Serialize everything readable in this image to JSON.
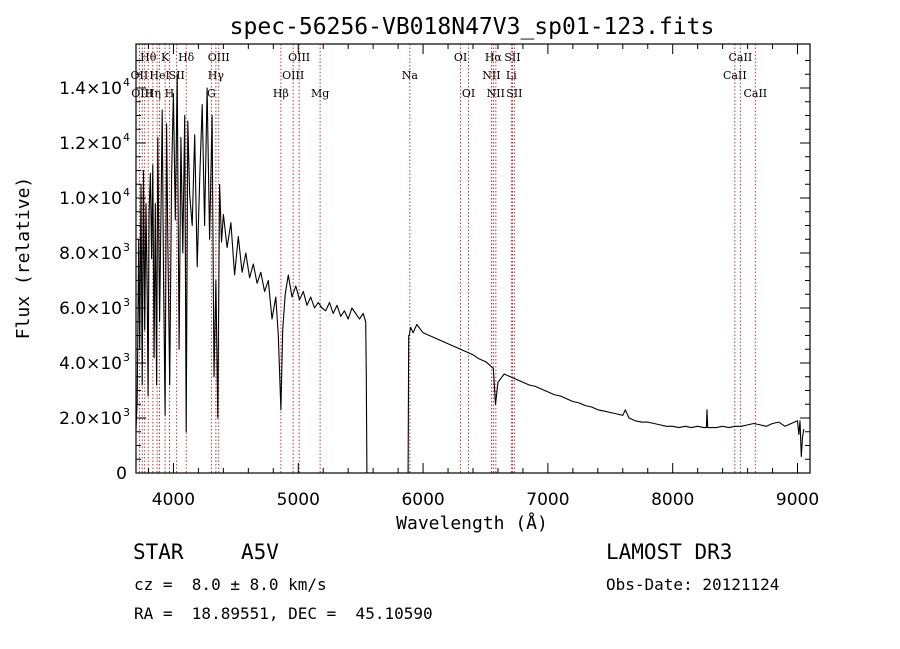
{
  "chart_data": {
    "type": "line",
    "title": "spec-56256-VB018N47V3_sp01-123.fits",
    "xlabel": "Wavelength (Å)",
    "ylabel": "Flux (relative)",
    "xlim": [
      3700,
      9100
    ],
    "ylim": [
      0,
      15600
    ],
    "grid": false,
    "x_ticks": [
      {
        "value": 4000,
        "label": "4000"
      },
      {
        "value": 5000,
        "label": "5000"
      },
      {
        "value": 6000,
        "label": "6000"
      },
      {
        "value": 7000,
        "label": "7000"
      },
      {
        "value": 8000,
        "label": "8000"
      },
      {
        "value": 9000,
        "label": "9000"
      }
    ],
    "y_ticks": [
      {
        "value": 0,
        "mant": "0",
        "exp": ""
      },
      {
        "value": 2000,
        "mant": "2.0×10",
        "exp": "3"
      },
      {
        "value": 4000,
        "mant": "4.0×10",
        "exp": "3"
      },
      {
        "value": 6000,
        "mant": "6.0×10",
        "exp": "3"
      },
      {
        "value": 8000,
        "mant": "8.0×10",
        "exp": "3"
      },
      {
        "value": 10000,
        "mant": "1.0×10",
        "exp": "4"
      },
      {
        "value": 12000,
        "mant": "1.2×10",
        "exp": "4"
      },
      {
        "value": 14000,
        "mant": "1.4×10",
        "exp": "4"
      }
    ],
    "line_color": "#000000",
    "marker_color": "#b22222",
    "series": [
      {
        "name": "spectrum",
        "x": [
          3700,
          3710,
          3722,
          3730,
          3740,
          3750,
          3760,
          3770,
          3780,
          3790,
          3797,
          3805,
          3815,
          3825,
          3835,
          3845,
          3855,
          3865,
          3875,
          3889,
          3900,
          3910,
          3920,
          3933,
          3945,
          3955,
          3970,
          3985,
          4000,
          4015,
          4030,
          4045,
          4060,
          4075,
          4090,
          4102,
          4115,
          4130,
          4150,
          4170,
          4190,
          4210,
          4230,
          4250,
          4270,
          4290,
          4310,
          4325,
          4340,
          4355,
          4370,
          4385,
          4400,
          4430,
          4460,
          4490,
          4520,
          4550,
          4580,
          4610,
          4640,
          4670,
          4700,
          4730,
          4760,
          4790,
          4820,
          4840,
          4861,
          4875,
          4895,
          4920,
          4950,
          4980,
          5010,
          5040,
          5070,
          5100,
          5130,
          5160,
          5190,
          5220,
          5250,
          5280,
          5310,
          5340,
          5370,
          5400,
          5430,
          5460,
          5490,
          5520,
          5540,
          5545,
          5550,
          5560,
          5600,
          5700,
          5800,
          5870,
          5880,
          5885,
          5890,
          5900,
          5920,
          5950,
          6000,
          6050,
          6100,
          6150,
          6200,
          6250,
          6300,
          6350,
          6400,
          6450,
          6500,
          6540,
          6563,
          6580,
          6600,
          6650,
          6700,
          6750,
          6800,
          6850,
          6900,
          6950,
          7000,
          7050,
          7100,
          7150,
          7200,
          7250,
          7300,
          7350,
          7400,
          7450,
          7500,
          7550,
          7600,
          7620,
          7650,
          7700,
          7750,
          7800,
          7850,
          7900,
          7950,
          8000,
          8050,
          8100,
          8150,
          8200,
          8250,
          8270,
          8275,
          8280,
          8300,
          8350,
          8400,
          8450,
          8500,
          8550,
          8600,
          8650,
          8700,
          8750,
          8800,
          8850,
          8900,
          8950,
          9000,
          9010,
          9020,
          9030,
          9040,
          9050
        ],
        "y": [
          1600,
          2600,
          8500,
          4500,
          10500,
          3200,
          11000,
          5200,
          9800,
          6500,
          2800,
          9500,
          10900,
          7800,
          11200,
          4200,
          9800,
          3200,
          12200,
          5500,
          9500,
          13200,
          7200,
          2100,
          12700,
          8500,
          3200,
          10800,
          13800,
          9200,
          14500,
          4500,
          12200,
          8000,
          13000,
          1500,
          12800,
          10100,
          9000,
          12300,
          7500,
          10700,
          13400,
          9000,
          14000,
          8500,
          13000,
          3500,
          7000,
          2000,
          10500,
          8400,
          9400,
          8200,
          9100,
          7200,
          8600,
          7300,
          8000,
          7100,
          7600,
          6900,
          7300,
          6600,
          7000,
          5600,
          6400,
          5000,
          2300,
          5200,
          6500,
          7200,
          6400,
          6800,
          6300,
          6600,
          6100,
          6400,
          6000,
          6200,
          6000,
          5900,
          6200,
          5800,
          6100,
          5700,
          5900,
          5600,
          6000,
          5800,
          5600,
          5800,
          5500,
          3500,
          0,
          0,
          0,
          0,
          0,
          0,
          0,
          5000,
          5000,
          5300,
          5100,
          5400,
          5100,
          5000,
          4900,
          4800,
          4700,
          4600,
          4500,
          4400,
          4300,
          4150,
          4050,
          3900,
          3800,
          2500,
          3300,
          3600,
          3500,
          3400,
          3300,
          3200,
          3150,
          3050,
          2950,
          2850,
          2800,
          2700,
          2600,
          2550,
          2450,
          2400,
          2300,
          2250,
          2200,
          2150,
          2100,
          2300,
          2000,
          1900,
          1850,
          1850,
          1800,
          1750,
          1700,
          1700,
          1650,
          1700,
          1650,
          1700,
          1650,
          1650,
          2300,
          1650,
          1650,
          1650,
          1700,
          1650,
          1700,
          1700,
          1750,
          1800,
          1750,
          1700,
          1800,
          1850,
          1700,
          1800,
          1900,
          1400,
          1900,
          600,
          1300,
          1600
        ]
      }
    ],
    "line_markers": [
      {
        "x": 3727,
        "label": "OII",
        "row": 1
      },
      {
        "x": 3750,
        "label": "OIII",
        "row": 2
      },
      {
        "x": 3770,
        "label": "",
        "row": 0
      },
      {
        "x": 3798,
        "label": "Hθ",
        "row": 0
      },
      {
        "x": 3835,
        "label": "Hη",
        "row": 2
      },
      {
        "x": 3869,
        "label": "",
        "row": 0
      },
      {
        "x": 3889,
        "label": "HeI",
        "row": 1
      },
      {
        "x": 3933,
        "label": "K",
        "row": 0
      },
      {
        "x": 3968,
        "label": "H",
        "row": 2
      },
      {
        "x": 4026,
        "label": "SII",
        "row": 1
      },
      {
        "x": 4102,
        "label": "Hδ",
        "row": 0
      },
      {
        "x": 4304,
        "label": "G",
        "row": 2
      },
      {
        "x": 4340,
        "label": "Hγ",
        "row": 1
      },
      {
        "x": 4363,
        "label": "OIII",
        "row": 0
      },
      {
        "x": 4861,
        "label": "Hβ",
        "row": 2
      },
      {
        "x": 4959,
        "label": "OIII",
        "row": 1
      },
      {
        "x": 5007,
        "label": "OIII",
        "row": 0
      },
      {
        "x": 5175,
        "label": "Mg",
        "row": 2
      },
      {
        "x": 5894,
        "label": "Na",
        "row": 1
      },
      {
        "x": 6300,
        "label": "OI",
        "row": 0
      },
      {
        "x": 6364,
        "label": "OI",
        "row": 2
      },
      {
        "x": 6548,
        "label": "NII",
        "row": 1
      },
      {
        "x": 6563,
        "label": "Hα",
        "row": 0
      },
      {
        "x": 6583,
        "label": "NII",
        "row": 2
      },
      {
        "x": 6707,
        "label": "Li",
        "row": 1
      },
      {
        "x": 6716,
        "label": "SII",
        "row": 0
      },
      {
        "x": 6731,
        "label": "SII",
        "row": 2
      },
      {
        "x": 8498,
        "label": "CaII",
        "row": 1
      },
      {
        "x": 8542,
        "label": "CaII",
        "row": 0
      },
      {
        "x": 8662,
        "label": "CaII",
        "row": 2
      }
    ]
  },
  "footer": {
    "object_class": "STAR",
    "subclass": "A5V",
    "velocity": "cz =  8.0 ± 8.0 km/s",
    "coordinates": "RA =  18.89551, DEC =  45.10590",
    "survey": "LAMOST DR3",
    "obs_date": "Obs-Date: 20121124"
  }
}
